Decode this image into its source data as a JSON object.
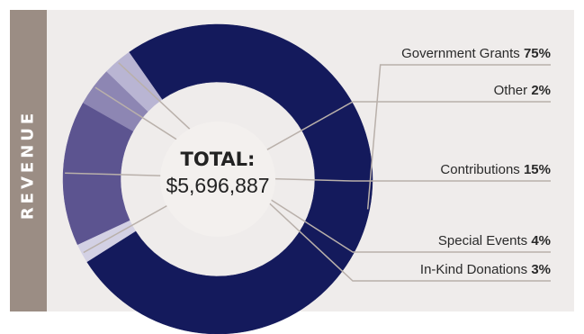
{
  "side_label": "REVENUE",
  "chart_data": {
    "type": "pie",
    "center_label": "TOTAL:",
    "center_value": "$5,696,887",
    "slices": [
      {
        "label": "Government Grants",
        "value": 75,
        "value_label": "75%",
        "color": "#141a5c"
      },
      {
        "label": "Other",
        "value": 2,
        "value_label": "2%",
        "color": "#d3d1e4"
      },
      {
        "label": "Contributions",
        "value": 15,
        "value_label": "15%",
        "color": "#5c5490"
      },
      {
        "label": "Special Events",
        "value": 4,
        "value_label": "4%",
        "color": "#8d86b3"
      },
      {
        "label": "In-Kind Donations",
        "value": 3,
        "value_label": "3%",
        "color": "#b9b5d3"
      }
    ]
  },
  "colors": {
    "background": "#efeceb",
    "side_band": "#9b8d84",
    "leader_line": "#b9b0aa",
    "center_disc": "#f3f0ee"
  }
}
